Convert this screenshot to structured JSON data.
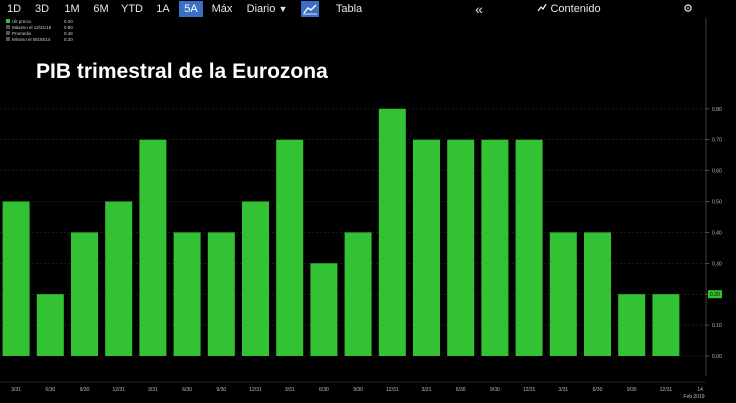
{
  "toolbar": {
    "ranges": [
      "1D",
      "3D",
      "1M",
      "6M",
      "YTD",
      "1A",
      "5A",
      "Máx"
    ],
    "active_range": "5A",
    "frequency": "Diario",
    "table_label": "Tabla",
    "collapse_label": "«",
    "content_label": "Contenido"
  },
  "legend": {
    "items": [
      {
        "label": "Últ precio",
        "value": "0.20"
      },
      {
        "label": "Máximo el 12/31/16",
        "value": "0.80"
      },
      {
        "label": "Promedio",
        "value": "0.49"
      },
      {
        "label": "Mínimo el 06/30/14",
        "value": "0.20"
      }
    ]
  },
  "colors": {
    "bar": "#33c233",
    "background": "#000000",
    "grid": "#2a2a2a",
    "accent": "#3b6fc4",
    "last_value_tag": "#33c233"
  },
  "chart_data": {
    "type": "bar",
    "title": "PIB trimestral de la Eurozona",
    "categories": [
      "3/31",
      "6/30",
      "9/30",
      "12/31",
      "3/31",
      "6/30",
      "9/30",
      "12/31",
      "3/31",
      "6/30",
      "9/30",
      "12/31",
      "3/31",
      "6/30",
      "9/30",
      "12/31",
      "3/31",
      "6/30",
      "9/30",
      "12/31"
    ],
    "values": [
      0.5,
      0.2,
      0.4,
      0.5,
      0.7,
      0.4,
      0.4,
      0.5,
      0.7,
      0.3,
      0.4,
      0.8,
      0.7,
      0.7,
      0.7,
      0.7,
      0.4,
      0.4,
      0.2,
      0.2
    ],
    "x_extra_ticks": [
      "14"
    ],
    "x_footer_label": "Feb 2019",
    "y_ticks": [
      "0.00",
      "0.10",
      "0.20",
      "0.30",
      "0.40",
      "0.50",
      "0.60",
      "0.70",
      "0.80"
    ],
    "ylim": [
      -0.02,
      0.84
    ],
    "last_value_label": "0.20",
    "grid": true,
    "legend_position": "top-left"
  }
}
